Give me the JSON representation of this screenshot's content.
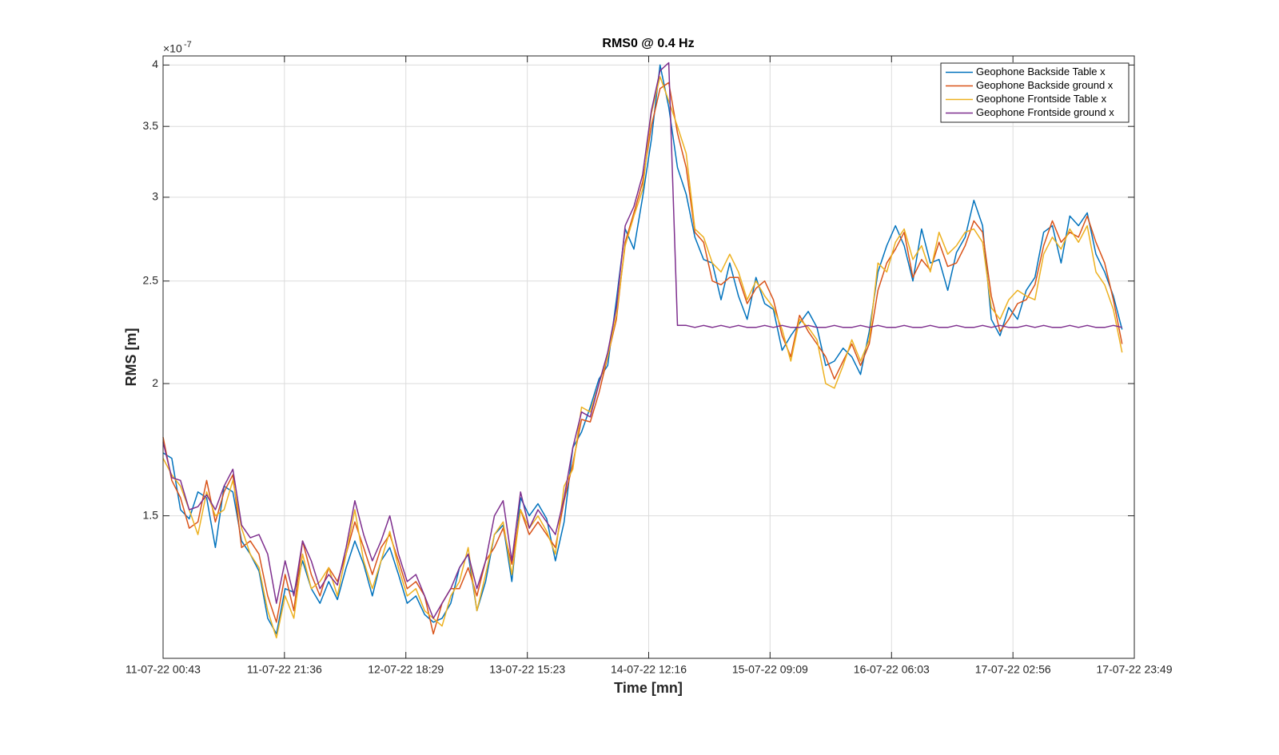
{
  "chart_data": {
    "type": "line",
    "title": "RMS0 @ 0.4 Hz",
    "xlabel": "Time [mn]",
    "ylabel": "RMS [m]",
    "y_multiplier": {
      "base": "×10",
      "exponent": "-7"
    },
    "yscale": "log",
    "grid": true,
    "legend": "northeast",
    "xlim": [
      0,
      167.1
    ],
    "ylim": [
      1.1,
      4.08
    ],
    "xticks": [
      {
        "value": 0,
        "label": "11-07-22 00:43"
      },
      {
        "value": 20.88,
        "label": "11-07-22 21:36"
      },
      {
        "value": 41.77,
        "label": "12-07-22 18:29"
      },
      {
        "value": 62.67,
        "label": "13-07-22 15:23"
      },
      {
        "value": 83.55,
        "label": "14-07-22 12:16"
      },
      {
        "value": 104.43,
        "label": "15-07-22 09:09"
      },
      {
        "value": 125.33,
        "label": "16-07-22 06:03"
      },
      {
        "value": 146.22,
        "label": "17-07-22 02:56"
      },
      {
        "value": 167.1,
        "label": "17-07-22 23:49"
      }
    ],
    "yticks": [
      1.5,
      2,
      2.5,
      3,
      3.5,
      4
    ],
    "x": [
      0,
      1.5,
      3,
      4.5,
      6,
      7.5,
      9,
      10.5,
      12,
      13.5,
      15,
      16.5,
      18,
      19.5,
      21,
      22.5,
      24,
      25.5,
      27,
      28.5,
      30,
      31.5,
      33,
      34.5,
      36,
      37.5,
      39,
      40.5,
      42,
      43.5,
      45,
      46.5,
      48,
      49.5,
      51,
      52.5,
      54,
      55.5,
      57,
      58.5,
      60,
      61.5,
      63,
      64.5,
      66,
      67.5,
      69,
      70.5,
      72,
      73.5,
      75,
      76.5,
      78,
      79.5,
      81,
      82.5,
      84,
      85.5,
      87,
      88.5,
      90,
      91.5,
      93,
      94.5,
      96,
      97.5,
      99,
      100.5,
      102,
      103.5,
      105,
      106.5,
      108,
      109.5,
      111,
      112.5,
      114,
      115.5,
      117,
      118.5,
      120,
      121.5,
      123,
      124.5,
      126,
      127.5,
      129,
      130.5,
      132,
      133.5,
      135,
      136.5,
      138,
      139.5,
      141,
      142.5,
      144,
      145.5,
      147,
      148.5,
      150,
      151.5,
      153,
      154.5,
      156,
      157.5,
      159,
      160.5,
      162,
      163.5,
      165
    ],
    "series": [
      {
        "name": "Geophone Backside Table x",
        "color": "#0072BD",
        "values": [
          1.72,
          1.7,
          1.52,
          1.49,
          1.58,
          1.56,
          1.4,
          1.6,
          1.58,
          1.42,
          1.38,
          1.33,
          1.2,
          1.16,
          1.28,
          1.27,
          1.36,
          1.28,
          1.24,
          1.3,
          1.25,
          1.34,
          1.42,
          1.35,
          1.26,
          1.36,
          1.4,
          1.32,
          1.24,
          1.26,
          1.21,
          1.19,
          1.2,
          1.24,
          1.34,
          1.38,
          1.22,
          1.3,
          1.44,
          1.47,
          1.3,
          1.56,
          1.5,
          1.54,
          1.49,
          1.36,
          1.48,
          1.74,
          1.8,
          1.9,
          2.02,
          2.08,
          2.4,
          2.8,
          2.68,
          3.0,
          3.4,
          4.0,
          3.65,
          3.2,
          3.02,
          2.75,
          2.62,
          2.6,
          2.4,
          2.6,
          2.42,
          2.3,
          2.52,
          2.38,
          2.35,
          2.15,
          2.22,
          2.28,
          2.34,
          2.26,
          2.08,
          2.1,
          2.16,
          2.12,
          2.04,
          2.24,
          2.55,
          2.7,
          2.82,
          2.7,
          2.5,
          2.8,
          2.6,
          2.62,
          2.45,
          2.66,
          2.75,
          2.98,
          2.82,
          2.3,
          2.22,
          2.36,
          2.3,
          2.45,
          2.52,
          2.78,
          2.82,
          2.6,
          2.88,
          2.82,
          2.9,
          2.65,
          2.55,
          2.42,
          2.25
        ]
      },
      {
        "name": "Geophone Backside ground x",
        "color": "#D95319",
        "values": [
          1.78,
          1.62,
          1.56,
          1.46,
          1.48,
          1.62,
          1.48,
          1.58,
          1.64,
          1.4,
          1.42,
          1.38,
          1.26,
          1.19,
          1.32,
          1.22,
          1.42,
          1.32,
          1.26,
          1.34,
          1.3,
          1.38,
          1.48,
          1.4,
          1.32,
          1.4,
          1.44,
          1.36,
          1.28,
          1.3,
          1.26,
          1.16,
          1.24,
          1.28,
          1.28,
          1.34,
          1.26,
          1.36,
          1.4,
          1.46,
          1.35,
          1.52,
          1.44,
          1.48,
          1.44,
          1.4,
          1.55,
          1.68,
          1.85,
          1.84,
          1.96,
          2.12,
          2.3,
          2.72,
          2.9,
          3.1,
          3.5,
          3.8,
          3.85,
          3.45,
          3.2,
          2.78,
          2.72,
          2.5,
          2.48,
          2.52,
          2.52,
          2.38,
          2.46,
          2.5,
          2.4,
          2.22,
          2.12,
          2.32,
          2.24,
          2.18,
          2.12,
          2.02,
          2.1,
          2.18,
          2.08,
          2.18,
          2.45,
          2.6,
          2.68,
          2.78,
          2.52,
          2.62,
          2.56,
          2.72,
          2.58,
          2.6,
          2.7,
          2.85,
          2.78,
          2.42,
          2.24,
          2.3,
          2.38,
          2.4,
          2.48,
          2.7,
          2.85,
          2.72,
          2.78,
          2.75,
          2.88,
          2.72,
          2.6,
          2.4,
          2.18
        ]
      },
      {
        "name": "Geophone Frontside Table x",
        "color": "#EDB120",
        "values": [
          1.7,
          1.64,
          1.6,
          1.52,
          1.44,
          1.58,
          1.5,
          1.52,
          1.62,
          1.46,
          1.38,
          1.34,
          1.22,
          1.15,
          1.26,
          1.2,
          1.38,
          1.28,
          1.3,
          1.34,
          1.26,
          1.38,
          1.52,
          1.36,
          1.28,
          1.36,
          1.45,
          1.34,
          1.26,
          1.28,
          1.22,
          1.2,
          1.18,
          1.26,
          1.3,
          1.4,
          1.22,
          1.32,
          1.44,
          1.48,
          1.32,
          1.52,
          1.46,
          1.5,
          1.45,
          1.38,
          1.6,
          1.66,
          1.9,
          1.88,
          2.0,
          2.12,
          2.32,
          2.7,
          2.88,
          3.05,
          3.6,
          3.9,
          3.7,
          3.5,
          3.3,
          2.8,
          2.75,
          2.6,
          2.55,
          2.65,
          2.55,
          2.4,
          2.5,
          2.42,
          2.36,
          2.25,
          2.1,
          2.3,
          2.26,
          2.2,
          2.0,
          1.98,
          2.08,
          2.2,
          2.1,
          2.2,
          2.6,
          2.55,
          2.72,
          2.8,
          2.62,
          2.7,
          2.55,
          2.78,
          2.65,
          2.7,
          2.78,
          2.8,
          2.72,
          2.36,
          2.3,
          2.4,
          2.45,
          2.42,
          2.4,
          2.65,
          2.75,
          2.68,
          2.8,
          2.72,
          2.82,
          2.55,
          2.48,
          2.35,
          2.14
        ]
      },
      {
        "name": "Geophone Frontside ground x",
        "color": "#7E2F8E",
        "values": [
          1.76,
          1.63,
          1.62,
          1.52,
          1.53,
          1.57,
          1.52,
          1.6,
          1.66,
          1.47,
          1.43,
          1.44,
          1.38,
          1.24,
          1.36,
          1.26,
          1.42,
          1.36,
          1.28,
          1.32,
          1.29,
          1.4,
          1.55,
          1.44,
          1.36,
          1.42,
          1.5,
          1.38,
          1.3,
          1.32,
          1.26,
          1.2,
          1.24,
          1.28,
          1.34,
          1.38,
          1.28,
          1.36,
          1.5,
          1.55,
          1.36,
          1.58,
          1.46,
          1.52,
          1.48,
          1.44,
          1.56,
          1.74,
          1.88,
          1.86,
          2.0,
          2.14,
          2.36,
          2.82,
          2.94,
          3.15,
          3.62,
          3.95,
          4.02,
          2.27,
          2.27,
          2.26,
          2.27,
          2.26,
          2.27,
          2.26,
          2.27,
          2.26,
          2.26,
          2.27,
          2.26,
          2.27,
          2.26,
          2.26,
          2.27,
          2.26,
          2.26,
          2.27,
          2.26,
          2.26,
          2.27,
          2.26,
          2.27,
          2.26,
          2.26,
          2.27,
          2.26,
          2.26,
          2.27,
          2.26,
          2.26,
          2.27,
          2.26,
          2.26,
          2.27,
          2.26,
          2.27,
          2.26,
          2.26,
          2.27,
          2.26,
          2.27,
          2.26,
          2.26,
          2.27,
          2.26,
          2.27,
          2.26,
          2.26,
          2.27,
          2.26
        ]
      }
    ]
  }
}
